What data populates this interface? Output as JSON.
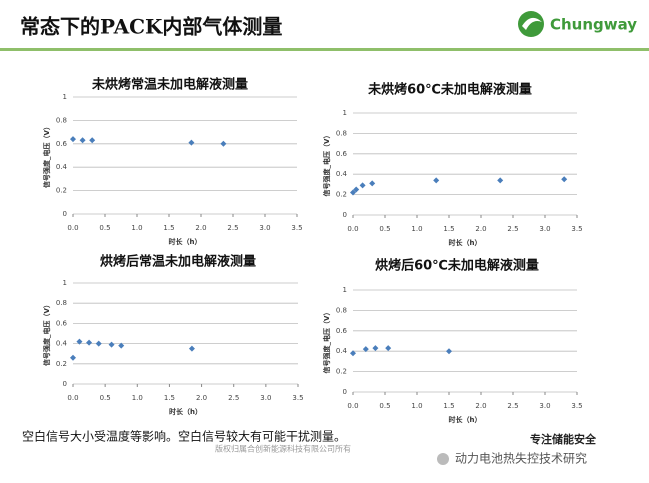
{
  "header": {
    "title": "常态下的PACK内部气体测量",
    "logo": "Chungway"
  },
  "chart_data": [
    {
      "type": "scatter",
      "title": "未烘烤常温未加电解液测量",
      "xlabel": "时长（h）",
      "ylabel": "信号强度_电压（V）",
      "x": [
        0,
        0.15,
        0.3,
        1.85,
        2.35
      ],
      "values": [
        0.64,
        0.63,
        0.63,
        0.61,
        0.6
      ],
      "color": "#4a7ebb",
      "xlim": [
        0,
        3.5
      ],
      "xticks": [
        {
          "value": 0,
          "label": "0.0"
        },
        {
          "value": 0.5,
          "label": "0.5"
        },
        {
          "value": 1,
          "label": "1.0"
        },
        {
          "value": 1.5,
          "label": "1.5"
        },
        {
          "value": 2,
          "label": "2.0"
        },
        {
          "value": 2.5,
          "label": "2.5"
        },
        {
          "value": 3,
          "label": "3.0"
        },
        {
          "value": 3.5,
          "label": "3.5"
        }
      ],
      "ylim": [
        0,
        1
      ],
      "yticks": [
        0,
        0.2,
        0.4,
        0.6,
        0.8,
        1
      ],
      "grid": true
    },
    {
      "type": "scatter",
      "title": "未烘烤60℃未加电解液测量",
      "xlabel": "时长（h）",
      "ylabel": "信号强度_电压（V）",
      "x": [
        0,
        0.05,
        0.15,
        0.3,
        1.3,
        2.3,
        3.3
      ],
      "values": [
        0.22,
        0.25,
        0.29,
        0.31,
        0.34,
        0.34,
        0.35
      ],
      "color": "#4a7ebb",
      "xlim": [
        0,
        3.5
      ],
      "xticks": [
        {
          "value": 0,
          "label": "0.0"
        },
        {
          "value": 0.5,
          "label": "0.5"
        },
        {
          "value": 1,
          "label": "1.0"
        },
        {
          "value": 1.5,
          "label": "1.5"
        },
        {
          "value": 2,
          "label": "2.0"
        },
        {
          "value": 2.5,
          "label": "2.5"
        },
        {
          "value": 3,
          "label": "3.0"
        },
        {
          "value": 3.5,
          "label": "3.5"
        }
      ],
      "ylim": [
        0,
        1
      ],
      "yticks": [
        0,
        0.2,
        0.4,
        0.6,
        0.8,
        1
      ],
      "grid": true
    },
    {
      "type": "scatter",
      "title": "烘烤后常温未加电解液测量",
      "xlabel": "时长（h）",
      "ylabel": "信号强度_电压（V）",
      "x": [
        0,
        0.1,
        0.25,
        0.4,
        0.6,
        0.75,
        1.85
      ],
      "values": [
        0.26,
        0.42,
        0.41,
        0.4,
        0.39,
        0.38,
        0.35
      ],
      "color": "#4a7ebb",
      "xlim": [
        0,
        3.5
      ],
      "xticks": [
        {
          "value": 0,
          "label": "0.0"
        },
        {
          "value": 0.5,
          "label": "0.5"
        },
        {
          "value": 1,
          "label": "1.0"
        },
        {
          "value": 1.5,
          "label": "1.5"
        },
        {
          "value": 2,
          "label": "2.0"
        },
        {
          "value": 2.5,
          "label": "2.5"
        },
        {
          "value": 3,
          "label": "3.0"
        },
        {
          "value": 3.5,
          "label": "3.5"
        }
      ],
      "ylim": [
        0,
        1
      ],
      "yticks": [
        0,
        0.2,
        0.4,
        0.6,
        0.8,
        1
      ],
      "grid": true
    },
    {
      "type": "scatter",
      "title": "烘烤后60℃未加电解液测量",
      "xlabel": "时长（h）",
      "ylabel": "信号强度_电压（V）",
      "x": [
        0,
        0.2,
        0.35,
        0.55,
        1.5
      ],
      "values": [
        0.38,
        0.42,
        0.43,
        0.43,
        0.4
      ],
      "color": "#4a7ebb",
      "xlim": [
        0,
        3.5
      ],
      "xticks": [
        {
          "value": 0,
          "label": "0.0"
        },
        {
          "value": 0.5,
          "label": "0.5"
        },
        {
          "value": 1,
          "label": "1.0"
        },
        {
          "value": 1.5,
          "label": "1.5"
        },
        {
          "value": 2,
          "label": "2.0"
        },
        {
          "value": 2.5,
          "label": "2.5"
        },
        {
          "value": 3,
          "label": "3.0"
        },
        {
          "value": 3.5,
          "label": "3.5"
        }
      ],
      "ylim": [
        0,
        1
      ],
      "yticks": [
        0,
        0.2,
        0.4,
        0.6,
        0.8,
        1
      ],
      "grid": true
    }
  ],
  "footer": {
    "note": "空白信号大小受温度等影响。空白信号较大有可能干扰测量。",
    "copyright": "版权归属合创新能源科技有限公司所有",
    "slogan": "专注储能安全",
    "account": "动力电池热失控技术研究"
  }
}
